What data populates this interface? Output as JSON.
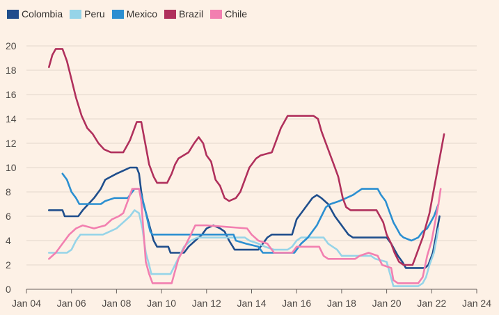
{
  "chart_data": {
    "type": "line",
    "title": "",
    "xlabel": "",
    "ylabel": "",
    "x_unit": "year",
    "xlim": [
      2004.0,
      2024.0
    ],
    "ylim": [
      0,
      20
    ],
    "y_ticks": [
      0,
      2,
      4,
      6,
      8,
      10,
      12,
      14,
      16,
      18,
      20
    ],
    "x_ticks": [
      2004,
      2006,
      2008,
      2010,
      2012,
      2014,
      2016,
      2018,
      2020,
      2022,
      2024
    ],
    "x_tick_labels": [
      "Jan 04",
      "Jan 06",
      "Jan 08",
      "Jan 10",
      "Jan 12",
      "Jan 14",
      "Jan 16",
      "Jan 18",
      "Jan 20",
      "Jan 22",
      "Jan 24"
    ],
    "grid": "horizontal",
    "legend_position": "top-left",
    "series": [
      {
        "name": "Colombia",
        "color": "#1f4e8c",
        "points": [
          [
            2005.0,
            6.5
          ],
          [
            2005.6,
            6.5
          ],
          [
            2005.7,
            6.0
          ],
          [
            2006.3,
            6.0
          ],
          [
            2006.5,
            6.5
          ],
          [
            2006.75,
            7.0
          ],
          [
            2007.0,
            7.5
          ],
          [
            2007.3,
            8.25
          ],
          [
            2007.5,
            9.0
          ],
          [
            2007.75,
            9.25
          ],
          [
            2008.0,
            9.5
          ],
          [
            2008.3,
            9.75
          ],
          [
            2008.6,
            10.0
          ],
          [
            2008.9,
            10.0
          ],
          [
            2009.0,
            9.5
          ],
          [
            2009.1,
            8.0
          ],
          [
            2009.2,
            7.0
          ],
          [
            2009.35,
            6.0
          ],
          [
            2009.5,
            5.0
          ],
          [
            2009.65,
            4.0
          ],
          [
            2009.8,
            3.5
          ],
          [
            2010.3,
            3.5
          ],
          [
            2010.4,
            3.0
          ],
          [
            2011.0,
            3.0
          ],
          [
            2011.2,
            3.5
          ],
          [
            2011.5,
            4.0
          ],
          [
            2011.8,
            4.5
          ],
          [
            2012.0,
            5.0
          ],
          [
            2012.3,
            5.25
          ],
          [
            2012.6,
            5.0
          ],
          [
            2012.8,
            4.75
          ],
          [
            2013.0,
            4.0
          ],
          [
            2013.25,
            3.25
          ],
          [
            2014.3,
            3.25
          ],
          [
            2014.5,
            3.75
          ],
          [
            2014.7,
            4.25
          ],
          [
            2014.9,
            4.5
          ],
          [
            2015.8,
            4.5
          ],
          [
            2016.0,
            5.75
          ],
          [
            2016.2,
            6.25
          ],
          [
            2016.5,
            7.0
          ],
          [
            2016.7,
            7.5
          ],
          [
            2016.9,
            7.75
          ],
          [
            2017.1,
            7.5
          ],
          [
            2017.4,
            7.0
          ],
          [
            2017.7,
            6.0
          ],
          [
            2017.9,
            5.5
          ],
          [
            2018.1,
            5.0
          ],
          [
            2018.3,
            4.5
          ],
          [
            2018.5,
            4.25
          ],
          [
            2019.5,
            4.25
          ],
          [
            2020.0,
            4.25
          ],
          [
            2020.2,
            3.75
          ],
          [
            2020.35,
            3.25
          ],
          [
            2020.5,
            2.75
          ],
          [
            2020.7,
            2.25
          ],
          [
            2020.85,
            1.75
          ],
          [
            2021.7,
            1.75
          ],
          [
            2021.85,
            2.0
          ],
          [
            2021.95,
            2.5
          ],
          [
            2022.05,
            3.0
          ],
          [
            2022.15,
            4.0
          ],
          [
            2022.25,
            5.0
          ],
          [
            2022.35,
            6.0
          ]
        ]
      },
      {
        "name": "Peru",
        "color": "#96d4e8",
        "points": [
          [
            2005.0,
            3.0
          ],
          [
            2005.2,
            3.0
          ],
          [
            2005.35,
            3.0
          ],
          [
            2005.8,
            3.0
          ],
          [
            2006.0,
            3.25
          ],
          [
            2006.2,
            4.0
          ],
          [
            2006.4,
            4.5
          ],
          [
            2007.4,
            4.5
          ],
          [
            2007.7,
            4.75
          ],
          [
            2008.0,
            5.0
          ],
          [
            2008.3,
            5.5
          ],
          [
            2008.6,
            6.0
          ],
          [
            2008.8,
            6.5
          ],
          [
            2009.0,
            6.25
          ],
          [
            2009.15,
            5.0
          ],
          [
            2009.3,
            3.0
          ],
          [
            2009.45,
            2.0
          ],
          [
            2009.55,
            1.25
          ],
          [
            2010.4,
            1.25
          ],
          [
            2010.6,
            2.0
          ],
          [
            2010.8,
            2.75
          ],
          [
            2011.0,
            3.5
          ],
          [
            2011.3,
            4.0
          ],
          [
            2011.6,
            4.25
          ],
          [
            2013.7,
            4.25
          ],
          [
            2013.9,
            4.0
          ],
          [
            2014.3,
            3.75
          ],
          [
            2014.6,
            3.5
          ],
          [
            2015.0,
            3.25
          ],
          [
            2015.6,
            3.25
          ],
          [
            2015.8,
            3.5
          ],
          [
            2016.0,
            4.0
          ],
          [
            2016.2,
            4.25
          ],
          [
            2017.2,
            4.25
          ],
          [
            2017.4,
            3.75
          ],
          [
            2017.6,
            3.5
          ],
          [
            2017.8,
            3.25
          ],
          [
            2018.0,
            2.75
          ],
          [
            2019.3,
            2.75
          ],
          [
            2019.5,
            2.5
          ],
          [
            2020.0,
            2.25
          ],
          [
            2020.15,
            1.25
          ],
          [
            2020.3,
            0.25
          ],
          [
            2021.4,
            0.25
          ],
          [
            2021.6,
            0.5
          ],
          [
            2021.75,
            1.0
          ],
          [
            2021.9,
            2.0
          ],
          [
            2022.0,
            2.5
          ],
          [
            2022.1,
            3.0
          ],
          [
            2022.2,
            4.0
          ],
          [
            2022.3,
            5.0
          ]
        ]
      },
      {
        "name": "Mexico",
        "color": "#2b8fd1",
        "points": [
          [
            2005.6,
            9.5
          ],
          [
            2005.8,
            9.0
          ],
          [
            2006.0,
            8.0
          ],
          [
            2006.2,
            7.5
          ],
          [
            2006.35,
            7.0
          ],
          [
            2007.3,
            7.0
          ],
          [
            2007.5,
            7.25
          ],
          [
            2007.9,
            7.5
          ],
          [
            2008.5,
            7.5
          ],
          [
            2008.6,
            7.75
          ],
          [
            2008.8,
            8.25
          ],
          [
            2009.0,
            8.25
          ],
          [
            2009.1,
            7.75
          ],
          [
            2009.25,
            6.75
          ],
          [
            2009.4,
            5.5
          ],
          [
            2009.5,
            4.75
          ],
          [
            2009.6,
            4.5
          ],
          [
            2013.2,
            4.5
          ],
          [
            2013.3,
            4.0
          ],
          [
            2013.75,
            3.75
          ],
          [
            2014.3,
            3.5
          ],
          [
            2014.5,
            3.0
          ],
          [
            2015.9,
            3.0
          ],
          [
            2016.0,
            3.25
          ],
          [
            2016.2,
            3.75
          ],
          [
            2016.5,
            4.25
          ],
          [
            2016.7,
            4.75
          ],
          [
            2016.9,
            5.25
          ],
          [
            2017.1,
            6.0
          ],
          [
            2017.3,
            6.75
          ],
          [
            2017.5,
            7.0
          ],
          [
            2017.9,
            7.25
          ],
          [
            2018.2,
            7.5
          ],
          [
            2018.5,
            7.75
          ],
          [
            2018.9,
            8.25
          ],
          [
            2019.6,
            8.25
          ],
          [
            2019.75,
            7.75
          ],
          [
            2019.95,
            7.25
          ],
          [
            2020.1,
            6.5
          ],
          [
            2020.3,
            5.5
          ],
          [
            2020.45,
            5.0
          ],
          [
            2020.6,
            4.5
          ],
          [
            2020.75,
            4.25
          ],
          [
            2021.1,
            4.0
          ],
          [
            2021.4,
            4.25
          ],
          [
            2021.6,
            4.75
          ],
          [
            2021.8,
            5.0
          ],
          [
            2021.95,
            5.5
          ],
          [
            2022.1,
            6.0
          ],
          [
            2022.2,
            6.5
          ],
          [
            2022.3,
            7.0
          ]
        ]
      },
      {
        "name": "Brazil",
        "color": "#b0305c",
        "points": [
          [
            2005.0,
            18.25
          ],
          [
            2005.15,
            19.25
          ],
          [
            2005.3,
            19.75
          ],
          [
            2005.6,
            19.75
          ],
          [
            2005.8,
            18.75
          ],
          [
            2006.0,
            17.25
          ],
          [
            2006.2,
            15.75
          ],
          [
            2006.45,
            14.25
          ],
          [
            2006.7,
            13.25
          ],
          [
            2006.95,
            12.75
          ],
          [
            2007.2,
            12.0
          ],
          [
            2007.45,
            11.5
          ],
          [
            2007.75,
            11.25
          ],
          [
            2008.3,
            11.25
          ],
          [
            2008.45,
            11.75
          ],
          [
            2008.6,
            12.25
          ],
          [
            2008.75,
            13.0
          ],
          [
            2008.9,
            13.75
          ],
          [
            2009.1,
            13.75
          ],
          [
            2009.2,
            12.75
          ],
          [
            2009.35,
            11.25
          ],
          [
            2009.45,
            10.25
          ],
          [
            2009.65,
            9.25
          ],
          [
            2009.8,
            8.75
          ],
          [
            2010.25,
            8.75
          ],
          [
            2010.45,
            9.5
          ],
          [
            2010.6,
            10.25
          ],
          [
            2010.75,
            10.75
          ],
          [
            2011.2,
            11.25
          ],
          [
            2011.45,
            12.0
          ],
          [
            2011.65,
            12.5
          ],
          [
            2011.85,
            12.0
          ],
          [
            2012.0,
            11.0
          ],
          [
            2012.2,
            10.5
          ],
          [
            2012.4,
            9.0
          ],
          [
            2012.6,
            8.5
          ],
          [
            2012.8,
            7.5
          ],
          [
            2013.0,
            7.25
          ],
          [
            2013.3,
            7.5
          ],
          [
            2013.5,
            8.0
          ],
          [
            2013.7,
            9.0
          ],
          [
            2013.9,
            10.0
          ],
          [
            2014.2,
            10.75
          ],
          [
            2014.4,
            11.0
          ],
          [
            2014.9,
            11.25
          ],
          [
            2015.1,
            12.25
          ],
          [
            2015.3,
            13.25
          ],
          [
            2015.6,
            14.25
          ],
          [
            2016.75,
            14.25
          ],
          [
            2016.95,
            14.0
          ],
          [
            2017.1,
            13.0
          ],
          [
            2017.25,
            12.25
          ],
          [
            2017.45,
            11.25
          ],
          [
            2017.65,
            10.25
          ],
          [
            2017.85,
            9.25
          ],
          [
            2018.05,
            7.5
          ],
          [
            2018.2,
            6.75
          ],
          [
            2018.4,
            6.5
          ],
          [
            2019.55,
            6.5
          ],
          [
            2019.7,
            6.0
          ],
          [
            2019.85,
            5.5
          ],
          [
            2020.0,
            4.5
          ],
          [
            2020.2,
            3.75
          ],
          [
            2020.35,
            3.0
          ],
          [
            2020.55,
            2.25
          ],
          [
            2020.75,
            2.0
          ],
          [
            2021.15,
            2.0
          ],
          [
            2021.3,
            2.75
          ],
          [
            2021.45,
            3.5
          ],
          [
            2021.6,
            4.25
          ],
          [
            2021.75,
            5.25
          ],
          [
            2021.9,
            6.25
          ],
          [
            2022.05,
            7.75
          ],
          [
            2022.2,
            9.25
          ],
          [
            2022.35,
            10.75
          ],
          [
            2022.45,
            11.75
          ],
          [
            2022.55,
            12.75
          ]
        ]
      },
      {
        "name": "Chile",
        "color": "#f27fb0",
        "points": [
          [
            2005.0,
            2.5
          ],
          [
            2005.3,
            3.0
          ],
          [
            2005.6,
            3.75
          ],
          [
            2005.9,
            4.5
          ],
          [
            2006.2,
            5.0
          ],
          [
            2006.5,
            5.25
          ],
          [
            2007.0,
            5.0
          ],
          [
            2007.5,
            5.25
          ],
          [
            2007.8,
            5.75
          ],
          [
            2008.1,
            6.0
          ],
          [
            2008.3,
            6.25
          ],
          [
            2008.5,
            7.25
          ],
          [
            2008.7,
            8.25
          ],
          [
            2009.0,
            8.25
          ],
          [
            2009.1,
            7.25
          ],
          [
            2009.2,
            4.75
          ],
          [
            2009.3,
            2.25
          ],
          [
            2009.45,
            1.25
          ],
          [
            2009.6,
            0.5
          ],
          [
            2010.45,
            0.5
          ],
          [
            2010.6,
            1.5
          ],
          [
            2010.75,
            2.5
          ],
          [
            2010.9,
            3.0
          ],
          [
            2011.1,
            3.75
          ],
          [
            2011.3,
            4.5
          ],
          [
            2011.5,
            5.25
          ],
          [
            2012.0,
            5.25
          ],
          [
            2013.8,
            5.0
          ],
          [
            2014.0,
            4.5
          ],
          [
            2014.3,
            4.0
          ],
          [
            2014.7,
            3.75
          ],
          [
            2014.9,
            3.25
          ],
          [
            2015.0,
            3.0
          ],
          [
            2015.8,
            3.0
          ],
          [
            2016.0,
            3.5
          ],
          [
            2017.0,
            3.5
          ],
          [
            2017.2,
            2.75
          ],
          [
            2017.4,
            2.5
          ],
          [
            2018.6,
            2.5
          ],
          [
            2018.8,
            2.75
          ],
          [
            2019.2,
            3.0
          ],
          [
            2019.6,
            2.75
          ],
          [
            2019.8,
            2.0
          ],
          [
            2020.2,
            1.75
          ],
          [
            2020.3,
            0.75
          ],
          [
            2020.5,
            0.5
          ],
          [
            2021.4,
            0.5
          ],
          [
            2021.6,
            1.0
          ],
          [
            2021.8,
            2.75
          ],
          [
            2022.0,
            4.0
          ],
          [
            2022.15,
            5.5
          ],
          [
            2022.3,
            7.0
          ],
          [
            2022.4,
            8.25
          ]
        ]
      }
    ]
  }
}
